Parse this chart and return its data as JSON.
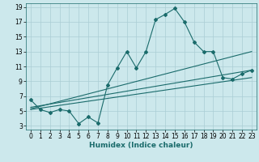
{
  "xlabel": "Humidex (Indice chaleur)",
  "bg_color": "#cce8ec",
  "line_color": "#1a6b6b",
  "grid_color": "#aacdd4",
  "x_main": [
    0,
    1,
    2,
    3,
    4,
    5,
    6,
    7,
    8,
    9,
    10,
    11,
    12,
    13,
    14,
    15,
    16,
    17,
    18,
    19,
    20,
    21,
    22,
    23
  ],
  "y_main": [
    6.5,
    5.2,
    4.8,
    5.2,
    5.0,
    3.3,
    4.2,
    3.4,
    8.5,
    10.8,
    13.0,
    10.8,
    13.0,
    17.3,
    18.0,
    18.8,
    17.0,
    14.3,
    13.0,
    13.0,
    9.5,
    9.3,
    10.0,
    10.5
  ],
  "trend1_x": [
    0,
    23
  ],
  "trend1_y": [
    5.5,
    10.5
  ],
  "trend2_x": [
    0,
    23
  ],
  "trend2_y": [
    5.2,
    9.5
  ],
  "trend3_x": [
    0,
    23
  ],
  "trend3_y": [
    5.3,
    13.0
  ],
  "xlim": [
    -0.5,
    23.5
  ],
  "ylim": [
    2.5,
    19.5
  ],
  "yticks": [
    3,
    5,
    7,
    9,
    11,
    13,
    15,
    17,
    19
  ],
  "xticks": [
    0,
    1,
    2,
    3,
    4,
    5,
    6,
    7,
    8,
    9,
    10,
    11,
    12,
    13,
    14,
    15,
    16,
    17,
    18,
    19,
    20,
    21,
    22,
    23
  ],
  "marker": "D",
  "markersize": 2.0,
  "linewidth": 0.8,
  "tick_fontsize": 5.5,
  "xlabel_fontsize": 6.5
}
